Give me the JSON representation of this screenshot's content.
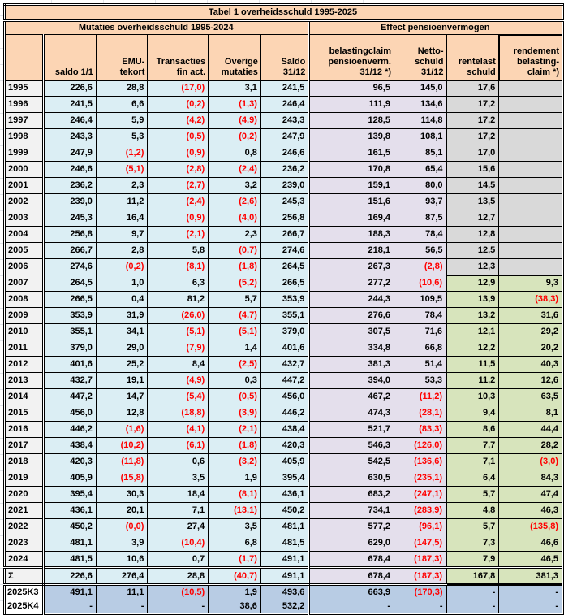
{
  "title": "Tabel 1 overheidsschuld 1995-2025",
  "groups": {
    "left": "Mutaties overheidsschuld 1995-2024",
    "right": "Effect pensioenvermogen"
  },
  "columns": [
    "",
    "saldo 1/1",
    "EMU-\ntekort",
    "Transacties\nfin act.",
    "Overige\nmutaties",
    "Saldo 31/12",
    "belastingclaim\npensioenverm.\n31/12 *)",
    "Netto-\nschuld\n31/12",
    "rentelast\nschuld",
    "rendement\nbelasting-\nclaim *)"
  ],
  "rows": [
    {
      "year": "1995",
      "cells": [
        "226,6",
        "28,8",
        "(17,0)",
        "3,1",
        "241,5",
        "96,5",
        "145,0",
        "17,6",
        ""
      ]
    },
    {
      "year": "1996",
      "cells": [
        "241,5",
        "6,6",
        "(0,2)",
        "(1,3)",
        "246,4",
        "111,9",
        "134,6",
        "17,2",
        ""
      ]
    },
    {
      "year": "1997",
      "cells": [
        "246,4",
        "5,9",
        "(4,2)",
        "(4,9)",
        "243,3",
        "128,5",
        "114,8",
        "17,2",
        ""
      ]
    },
    {
      "year": "1998",
      "cells": [
        "243,3",
        "5,3",
        "(0,5)",
        "(0,2)",
        "247,9",
        "139,8",
        "108,1",
        "17,2",
        ""
      ]
    },
    {
      "year": "1999",
      "cells": [
        "247,9",
        "(1,2)",
        "(0,9)",
        "0,8",
        "246,6",
        "161,5",
        "85,1",
        "17,0",
        ""
      ]
    },
    {
      "year": "2000",
      "cells": [
        "246,6",
        "(5,1)",
        "(2,8)",
        "(2,4)",
        "236,2",
        "170,8",
        "65,4",
        "15,6",
        ""
      ]
    },
    {
      "year": "2001",
      "cells": [
        "236,2",
        "2,3",
        "(2,7)",
        "3,2",
        "239,0",
        "159,1",
        "80,0",
        "14,5",
        ""
      ]
    },
    {
      "year": "2002",
      "cells": [
        "239,0",
        "11,2",
        "(2,4)",
        "(2,6)",
        "245,3",
        "151,6",
        "93,7",
        "13,5",
        ""
      ]
    },
    {
      "year": "2003",
      "cells": [
        "245,3",
        "16,4",
        "(0,9)",
        "(4,0)",
        "256,8",
        "169,4",
        "87,5",
        "12,7",
        ""
      ]
    },
    {
      "year": "2004",
      "cells": [
        "256,8",
        "9,7",
        "(2,1)",
        "2,3",
        "266,7",
        "188,3",
        "78,4",
        "12,8",
        ""
      ]
    },
    {
      "year": "2005",
      "cells": [
        "266,7",
        "2,8",
        "5,8",
        "(0,7)",
        "274,6",
        "218,1",
        "56,5",
        "12,5",
        ""
      ]
    },
    {
      "year": "2006",
      "cells": [
        "274,6",
        "(0,2)",
        "(8,1)",
        "(1,8)",
        "264,5",
        "267,3",
        "(2,8)",
        "12,3",
        ""
      ]
    },
    {
      "year": "2007",
      "cells": [
        "264,5",
        "1,0",
        "6,3",
        "(5,2)",
        "266,5",
        "277,2",
        "(10,6)",
        "12,9",
        "9,3"
      ]
    },
    {
      "year": "2008",
      "cells": [
        "266,5",
        "0,4",
        "81,2",
        "5,7",
        "353,9",
        "244,3",
        "109,5",
        "13,9",
        "(38,3)"
      ]
    },
    {
      "year": "2009",
      "cells": [
        "353,9",
        "31,9",
        "(26,0)",
        "(4,7)",
        "355,1",
        "276,6",
        "78,4",
        "13,2",
        "31,6"
      ]
    },
    {
      "year": "2010",
      "cells": [
        "355,1",
        "34,1",
        "(5,1)",
        "(5,1)",
        "379,0",
        "307,5",
        "71,6",
        "12,1",
        "29,2"
      ]
    },
    {
      "year": "2011",
      "cells": [
        "379,0",
        "29,0",
        "(7,9)",
        "1,4",
        "401,6",
        "334,8",
        "66,8",
        "12,2",
        "20,2"
      ]
    },
    {
      "year": "2012",
      "cells": [
        "401,6",
        "25,2",
        "8,4",
        "(2,5)",
        "432,7",
        "381,3",
        "51,4",
        "11,5",
        "40,3"
      ]
    },
    {
      "year": "2013",
      "cells": [
        "432,7",
        "19,1",
        "(4,9)",
        "0,3",
        "447,2",
        "394,0",
        "53,3",
        "11,2",
        "12,6"
      ]
    },
    {
      "year": "2014",
      "cells": [
        "447,2",
        "14,7",
        "(5,4)",
        "(0,5)",
        "456,0",
        "467,2",
        "(11,2)",
        "10,3",
        "63,5"
      ]
    },
    {
      "year": "2015",
      "cells": [
        "456,0",
        "12,8",
        "(18,8)",
        "(3,9)",
        "446,2",
        "474,3",
        "(28,1)",
        "9,4",
        "8,1"
      ]
    },
    {
      "year": "2016",
      "cells": [
        "446,2",
        "(1,6)",
        "(4,1)",
        "(2,1)",
        "438,4",
        "521,7",
        "(83,3)",
        "8,6",
        "44,4"
      ]
    },
    {
      "year": "2017",
      "cells": [
        "438,4",
        "(10,2)",
        "(6,1)",
        "(1,8)",
        "420,3",
        "546,3",
        "(126,0)",
        "7,7",
        "28,2"
      ]
    },
    {
      "year": "2018",
      "cells": [
        "420,3",
        "(11,8)",
        "0,6",
        "(3,2)",
        "405,9",
        "542,5",
        "(136,6)",
        "7,1",
        "(3,0)"
      ]
    },
    {
      "year": "2019",
      "cells": [
        "405,9",
        "(15,8)",
        "3,5",
        "1,9",
        "395,4",
        "630,5",
        "(235,1)",
        "6,4",
        "84,3"
      ]
    },
    {
      "year": "2020",
      "cells": [
        "395,4",
        "30,3",
        "18,4",
        "(8,1)",
        "436,1",
        "683,2",
        "(247,1)",
        "5,7",
        "47,4"
      ]
    },
    {
      "year": "2021",
      "cells": [
        "436,1",
        "20,1",
        "7,1",
        "(13,1)",
        "450,2",
        "734,1",
        "(283,9)",
        "4,8",
        "46,3"
      ]
    },
    {
      "year": "2022",
      "cells": [
        "450,2",
        "(0,0)",
        "27,4",
        "3,5",
        "481,1",
        "577,2",
        "(96,1)",
        "5,7",
        "(135,8)"
      ]
    },
    {
      "year": "2023",
      "cells": [
        "481,1",
        "3,9",
        "(10,4)",
        "6,8",
        "481,5",
        "629,0",
        "(147,5)",
        "7,3",
        "46,6"
      ]
    },
    {
      "year": "2024",
      "cells": [
        "481,5",
        "10,6",
        "0,7",
        "(1,7)",
        "491,1",
        "678,4",
        "(187,3)",
        "7,9",
        "46,5"
      ]
    }
  ],
  "sum_row": {
    "year": "Σ",
    "cells": [
      "226,6",
      "276,4",
      "28,8",
      "(40,7)",
      "491,1",
      "678,4",
      "(187,3)",
      "167,8",
      "381,3"
    ]
  },
  "quarter_rows": [
    {
      "year": "2025K3",
      "cells": [
        "491,1",
        "11,1",
        "(10,5)",
        "1,9",
        "493,6",
        "663,9",
        "(170,3)",
        "-",
        "-"
      ]
    },
    {
      "year": "2025K4",
      "cells": [
        "-",
        "-",
        "-",
        "38,6",
        "532,2",
        "-",
        "-",
        "-",
        "-"
      ]
    }
  ],
  "colors": {
    "header_fill": "#FCD5B4",
    "band_blue": "#DBEEF4",
    "band_lavender": "#E4DFEC",
    "band_gray": "#D9D9D9",
    "band_green": "#D7E4BC",
    "band_steelblue": "#B8CCE4",
    "year_fill": "#F2F2F2",
    "negative_text": "#FF0000",
    "border": "#000000"
  }
}
